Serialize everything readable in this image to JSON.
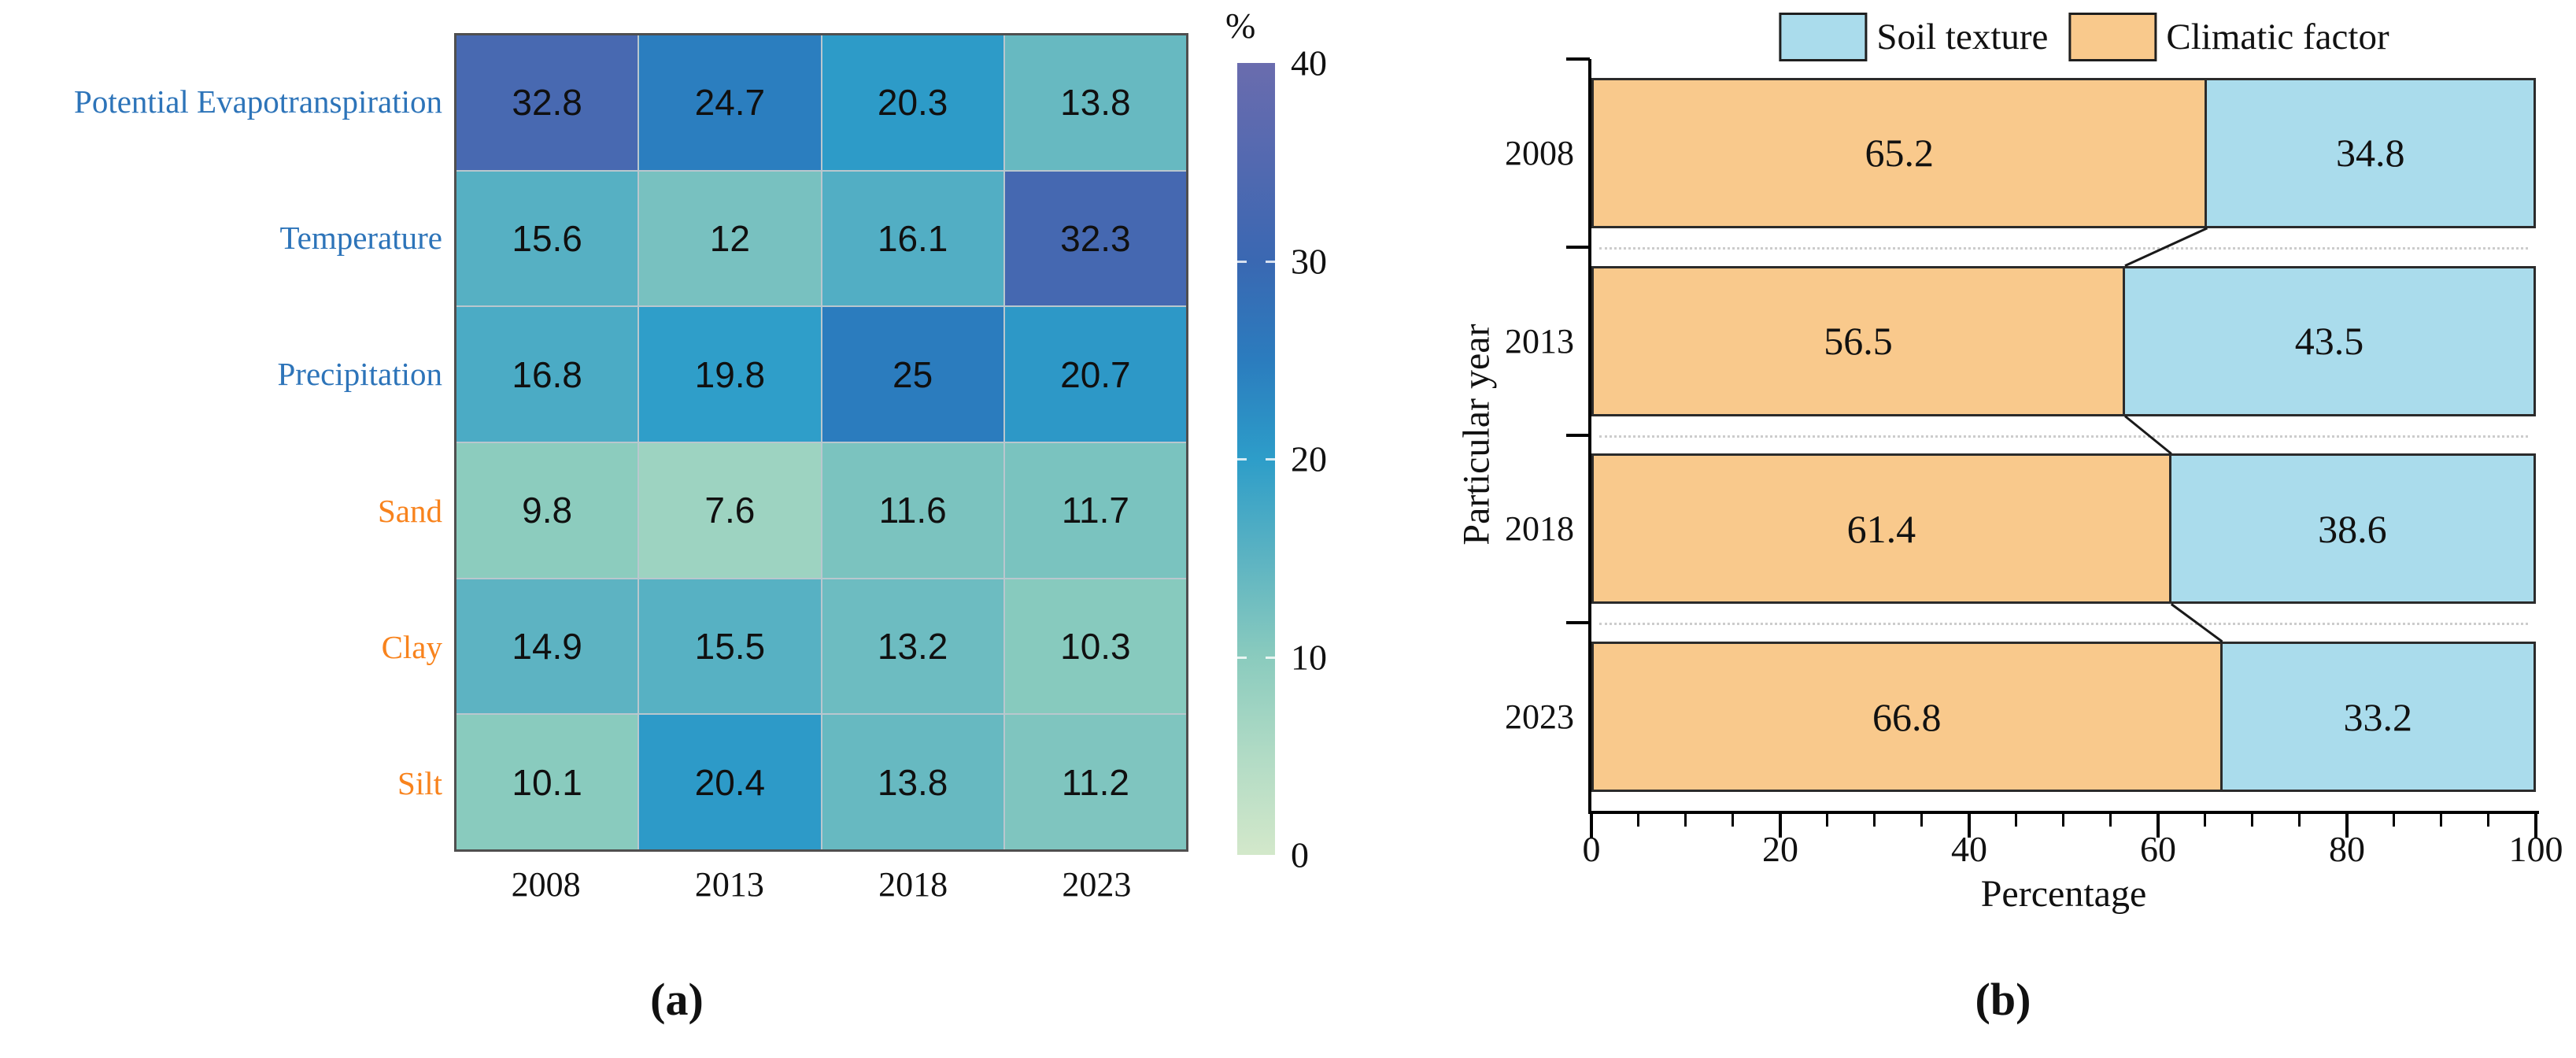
{
  "figure": {
    "caption_a": "(a)",
    "caption_b": "(b)"
  },
  "chart_data": [
    {
      "id": "driver-heatmap",
      "type": "heatmap",
      "unit_label": "%",
      "columns": [
        "2008",
        "2013",
        "2018",
        "2023"
      ],
      "rows": [
        {
          "label": "Potential Evapotranspiration",
          "group": "climatic",
          "values": [
            32.8,
            24.7,
            20.3,
            13.8
          ]
        },
        {
          "label": "Temperature",
          "group": "climatic",
          "values": [
            15.6,
            12,
            16.1,
            32.3
          ]
        },
        {
          "label": "Precipitation",
          "group": "climatic",
          "values": [
            16.8,
            19.8,
            25,
            20.7
          ]
        },
        {
          "label": "Sand",
          "group": "soil",
          "values": [
            9.8,
            7.6,
            11.6,
            11.7
          ]
        },
        {
          "label": "Clay",
          "group": "soil",
          "values": [
            14.9,
            15.5,
            13.2,
            10.3
          ]
        },
        {
          "label": "Silt",
          "group": "soil",
          "values": [
            10.1,
            20.4,
            13.8,
            11.2
          ]
        }
      ],
      "label_colors": {
        "climatic": "#2d74b9",
        "soil": "#f8831d"
      },
      "colorbar": {
        "min": 0,
        "max": 40,
        "ticks": [
          40,
          30,
          20,
          10,
          0
        ],
        "notches": [
          30,
          20,
          10
        ]
      },
      "colormap_stops": [
        {
          "v": 0,
          "c": "#d3e8ca"
        },
        {
          "v": 5,
          "c": "#b1dbc5"
        },
        {
          "v": 10,
          "c": "#8acbbe"
        },
        {
          "v": 15,
          "c": "#5cb3c2"
        },
        {
          "v": 20,
          "c": "#2d9dc9"
        },
        {
          "v": 25,
          "c": "#2b7cbe"
        },
        {
          "v": 30,
          "c": "#3a68b2"
        },
        {
          "v": 35,
          "c": "#5369b0"
        },
        {
          "v": 40,
          "c": "#6a6cae"
        }
      ],
      "grid_line_color": "#b9c7ce",
      "border_color": "#4f4f4f"
    },
    {
      "id": "factor-stacked-bar",
      "type": "bar",
      "orientation": "horizontal",
      "stacked": true,
      "categories": [
        "2008",
        "2013",
        "2018",
        "2023"
      ],
      "series": [
        {
          "name": "Climatic factor",
          "color": "#f9c98c",
          "values": [
            65.2,
            56.5,
            61.4,
            66.8
          ]
        },
        {
          "name": "Soil texture",
          "color": "#aadcec",
          "values": [
            34.8,
            43.5,
            38.6,
            33.2
          ]
        }
      ],
      "legend_position": "top",
      "xlabel": "Percentage",
      "ylabel": "Particular year",
      "xlim": [
        0,
        100
      ],
      "x_major_ticks": [
        0,
        20,
        40,
        60,
        80,
        100
      ],
      "x_minor_step": 5,
      "bar_border_color": "#2b2b2b",
      "connector_color": "#1a1a1a",
      "separator_style": "dotted"
    }
  ]
}
